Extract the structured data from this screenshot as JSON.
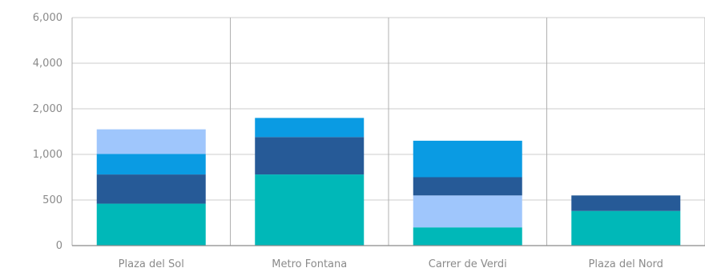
{
  "chart_data": {
    "type": "bar",
    "stacked": true,
    "categories": [
      "Plaza del Sol",
      "Metro Fontana",
      "Carrer de Verdi",
      "Plaza del Nord"
    ],
    "y_ticks": [
      {
        "label": "0",
        "value": 0
      },
      {
        "label": "500",
        "value": 500
      },
      {
        "label": "1,000",
        "value": 1000
      },
      {
        "label": "2,000",
        "value": 2000
      },
      {
        "label": "4,000",
        "value": 4000
      },
      {
        "label": "6,000",
        "value": 6000
      }
    ],
    "stacks": [
      [
        {
          "from": 0,
          "to": 460,
          "color": "#00b8b8"
        },
        {
          "from": 460,
          "to": 780,
          "color": "#265a97"
        },
        {
          "from": 780,
          "to": 1010,
          "color": "#0a9be3"
        },
        {
          "from": 1010,
          "to": 1550,
          "color": "#9fc6fc"
        }
      ],
      [
        {
          "from": 0,
          "to": 780,
          "color": "#00b8b8"
        },
        {
          "from": 780,
          "to": 1380,
          "color": "#265a97"
        },
        {
          "from": 1380,
          "to": 1800,
          "color": "#0a9be3"
        }
      ],
      [
        {
          "from": 0,
          "to": 200,
          "color": "#00b8b8"
        },
        {
          "from": 200,
          "to": 550,
          "color": "#9fc6fc"
        },
        {
          "from": 550,
          "to": 750,
          "color": "#265a97"
        },
        {
          "from": 750,
          "to": 1300,
          "color": "#0a9be3"
        }
      ],
      [
        {
          "from": 0,
          "to": 380,
          "color": "#00b8b8"
        },
        {
          "from": 380,
          "to": 550,
          "color": "#265a97"
        }
      ]
    ],
    "y_scale": "piecewise (0–500–1,000–2,000–4,000–6,000 evenly spaced)",
    "grid": true,
    "legend": "none",
    "title": "",
    "xlabel": "",
    "ylabel": ""
  }
}
